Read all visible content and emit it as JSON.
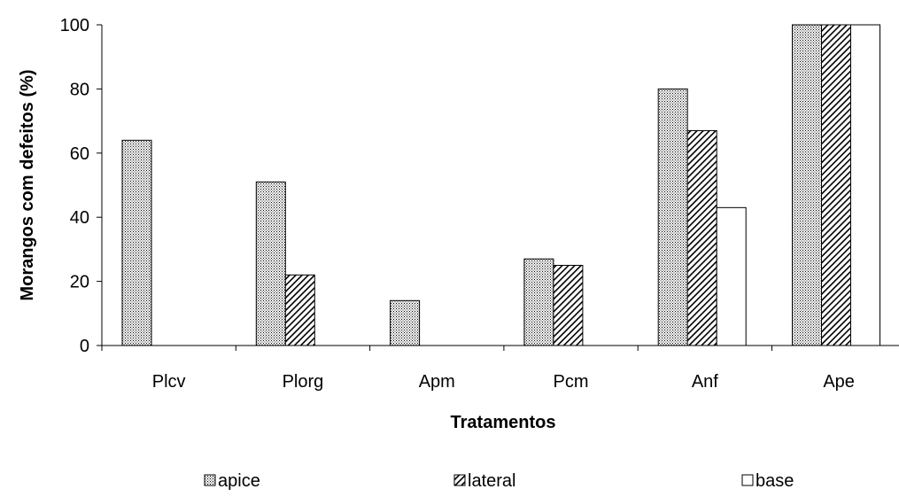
{
  "chart_data": {
    "type": "bar",
    "categories": [
      "Plcv",
      "Plorg",
      "Apm",
      "Pcm",
      "Anf",
      "Ape"
    ],
    "series": [
      {
        "name": "apice",
        "values": [
          64,
          51,
          14,
          27,
          80,
          100
        ],
        "pattern": "dots"
      },
      {
        "name": "lateral",
        "values": [
          0,
          22,
          0,
          25,
          67,
          100
        ],
        "pattern": "diagonal"
      },
      {
        "name": "base",
        "values": [
          0,
          0,
          0,
          0,
          43,
          100
        ],
        "pattern": "none"
      }
    ],
    "title": "",
    "xlabel": "Tratamentos",
    "ylabel": "Morangos com defeitos (%)",
    "ylim": [
      0,
      100
    ],
    "yticks": [
      0,
      20,
      40,
      60,
      80,
      100
    ],
    "grid": false,
    "legend_position": "bottom",
    "colors": {
      "bar_fill": "#ffffff",
      "stroke": "#000000",
      "pattern": "#000000"
    }
  }
}
